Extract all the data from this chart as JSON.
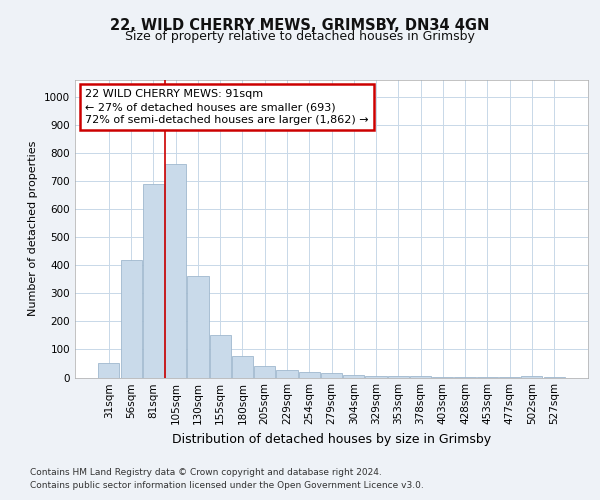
{
  "title1": "22, WILD CHERRY MEWS, GRIMSBY, DN34 4GN",
  "title2": "Size of property relative to detached houses in Grimsby",
  "xlabel": "Distribution of detached houses by size in Grimsby",
  "ylabel": "Number of detached properties",
  "categories": [
    "31sqm",
    "56sqm",
    "81sqm",
    "105sqm",
    "130sqm",
    "155sqm",
    "180sqm",
    "205sqm",
    "229sqm",
    "254sqm",
    "279sqm",
    "304sqm",
    "329sqm",
    "353sqm",
    "378sqm",
    "403sqm",
    "428sqm",
    "453sqm",
    "477sqm",
    "502sqm",
    "527sqm"
  ],
  "values": [
    50,
    420,
    690,
    760,
    360,
    150,
    75,
    40,
    27,
    20,
    15,
    10,
    7,
    5,
    5,
    3,
    2,
    1,
    1,
    5,
    1
  ],
  "bar_color": "#c9daea",
  "bar_edge_color": "#a0b8ce",
  "grid_color": "#c8d8e8",
  "vline_color": "#cc0000",
  "vline_x": 2.5,
  "annotation_text": "22 WILD CHERRY MEWS: 91sqm\n← 27% of detached houses are smaller (693)\n72% of semi-detached houses are larger (1,862) →",
  "annotation_box_color": "#ffffff",
  "annotation_box_edge_color": "#cc0000",
  "footnote1": "Contains HM Land Registry data © Crown copyright and database right 2024.",
  "footnote2": "Contains public sector information licensed under the Open Government Licence v3.0.",
  "ylim": [
    0,
    1060
  ],
  "yticks": [
    0,
    100,
    200,
    300,
    400,
    500,
    600,
    700,
    800,
    900,
    1000
  ],
  "bg_color": "#eef2f7",
  "plot_bg_color": "#ffffff",
  "title1_fontsize": 10.5,
  "title2_fontsize": 9,
  "ylabel_fontsize": 8,
  "xlabel_fontsize": 9,
  "tick_fontsize": 7.5,
  "footnote_fontsize": 6.5
}
